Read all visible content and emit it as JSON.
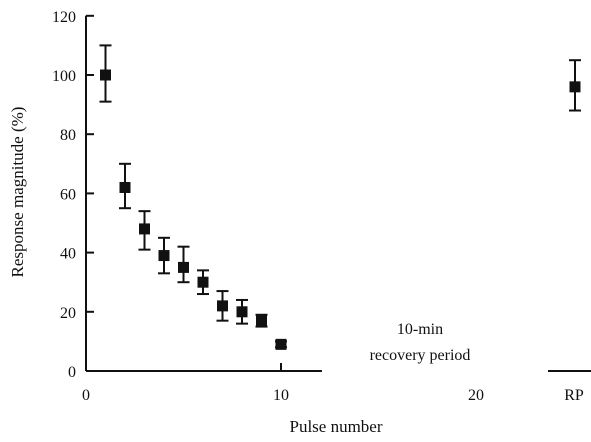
{
  "chart_data": {
    "type": "scatter",
    "title": "",
    "xlabel": "Pulse number",
    "ylabel": "Response magnitude (%)",
    "xlim": [
      0,
      22
    ],
    "ylim": [
      0,
      120
    ],
    "x_ticks": [
      0,
      10,
      20
    ],
    "x_tick_labels": [
      "0",
      "10",
      "20"
    ],
    "y_ticks": [
      0,
      20,
      40,
      60,
      80,
      100,
      120
    ],
    "y_tick_labels": [
      "0",
      "20",
      "40",
      "60",
      "80",
      "100",
      "120"
    ],
    "grid": false,
    "legend": "none",
    "marker": "square",
    "color": "#111111",
    "annotation": {
      "lines": [
        "10-min",
        "recovery period"
      ]
    },
    "recovery_tick_label": "RP",
    "series": [
      {
        "points": [
          {
            "x": 1,
            "y": 100,
            "err_low": 91,
            "err_high": 110
          },
          {
            "x": 2,
            "y": 62,
            "err_low": 55,
            "err_high": 70
          },
          {
            "x": 3,
            "y": 48,
            "err_low": 41,
            "err_high": 54
          },
          {
            "x": 4,
            "y": 39,
            "err_low": 33,
            "err_high": 45
          },
          {
            "x": 5,
            "y": 35,
            "err_low": 30,
            "err_high": 42
          },
          {
            "x": 6,
            "y": 30,
            "err_low": 26,
            "err_high": 34
          },
          {
            "x": 7,
            "y": 22,
            "err_low": 17,
            "err_high": 27
          },
          {
            "x": 8,
            "y": 20,
            "err_low": 16,
            "err_high": 24
          },
          {
            "x": 9,
            "y": 17,
            "err_low": 15,
            "err_high": 19
          },
          {
            "x": 10,
            "y": 9,
            "err_low": 8,
            "err_high": 10
          }
        ]
      }
    ],
    "recovery_point": {
      "label": "RP",
      "y": 96,
      "err_low": 88,
      "err_high": 105
    }
  }
}
